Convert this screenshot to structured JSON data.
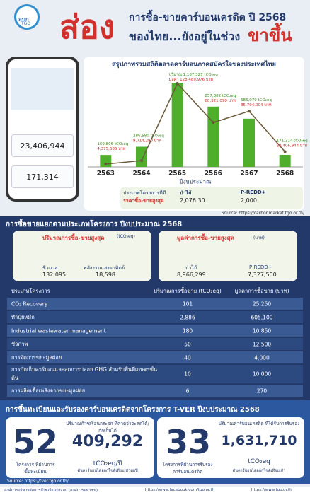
{
  "header": {
    "logo": "อบก",
    "logo_sub": "TGO",
    "big": "ส่อง",
    "line1": "การซื้อ-ขายคาร์บอนเครดิต ปี 2568",
    "line2": "ของไทย...ยังอยู่ในช่วง",
    "highlight": "ขาขึ้น"
  },
  "phone": {
    "value_amount": "23,406,944",
    "volume_amount": "171,314"
  },
  "chart_data": {
    "type": "bar",
    "title": "สรุปภาพรวมสถิติตลาดคาร์บอนภาคสมัครใจของประเทศไทย",
    "x_label": "ปีงบประมาณ",
    "categories": [
      "2563",
      "2564",
      "2565",
      "2566",
      "2567",
      "2568"
    ],
    "series": [
      {
        "name": "ปริมาณ",
        "color": "#4fae2c",
        "unit": "tCO₂eq",
        "values": [
          169806,
          286580,
          1187327,
          857382,
          686079,
          171314
        ],
        "value_labels": [
          "169,806",
          "286,580",
          "1,187,327",
          "857,382",
          "686,079",
          "171,314"
        ]
      },
      {
        "name": "มูลค่า",
        "type": "line",
        "axis": "y2",
        "color": "#6b5a3a",
        "label_color": "#d0312d",
        "unit": "บาท",
        "values": [
          4375686,
          9714290,
          128489976,
          68321090,
          85794004,
          23406944
        ],
        "value_labels": [
          "4,375,686",
          "9,714,290",
          "128,489,976",
          "68,321,090",
          "85,794,004",
          "23,406,944"
        ]
      }
    ]
  },
  "price_box": {
    "title1": "ประเภทโครงการที่มี",
    "title2": "ราคาซื้อ-ขายสูงสุด",
    "items": [
      {
        "name": "ป่าไม้",
        "value": "2,076.30"
      },
      {
        "name": "P-REDD+",
        "value": "2,000"
      }
    ]
  },
  "source1": "Source: https://carbonmarket.tgo.or.th/",
  "section2": {
    "title": "การซื้อขายแยกตามประเภทโครงการ ปีงบประมาณ 2568",
    "left": {
      "title": "ปริมาณการซื้อ-ขายสูงสุด",
      "unit": "(tCO₂eq)",
      "items": [
        {
          "name": "ชีวมวล",
          "value": "132,095"
        },
        {
          "name": "พลังงานแสงอาทิตย์",
          "value": "18,598"
        }
      ]
    },
    "right": {
      "title": "มูลค่าการซื้อ-ขายสูงสุด",
      "unit": "(บาท)",
      "items": [
        {
          "name": "ป่าไม้",
          "value": "8,966,299"
        },
        {
          "name": "P-REDD+",
          "value": "7,327,500"
        }
      ]
    }
  },
  "table": {
    "headers": [
      "ประเภทโครงการ",
      "ปริมาณการซื้อขาย (tCO₂eq)",
      "มูลค่าการซื้อขาย (บาท)"
    ],
    "rows": [
      [
        "CO₂ Recovery",
        "101",
        "25,250"
      ],
      [
        "ทำปุ๋ยหมัก",
        "2,886",
        "605,100"
      ],
      [
        "Industrial wastewater management",
        "180",
        "10,850"
      ],
      [
        "ชีวภาพ",
        "50",
        "12,500"
      ],
      [
        "การจัดการขยะมูลฝอย",
        "40",
        "4,000"
      ],
      [
        "การกักเก็บคาร์บอนและลดการปล่อย GHG สำหรับพื้นที่เกษตรขั้นต้น",
        "10",
        "10,000"
      ],
      [
        "การผลิตเชื้อเพลิงจากขยะมูลฝอย",
        "6",
        "270"
      ]
    ]
  },
  "section3": {
    "title": "การขึ้นทะเบียนและรับรองคาร์บอนเครดิตจากโครงการ T-VER ปีงบประมาณ 2568",
    "left": {
      "count": "52",
      "count_label": "โครงการ ที่ผ่านการขึ้นทะเบียน",
      "desc": "ปริมาณก๊าซเรือนกระจก ที่คาดว่าจะลดได้/กักเก็บได้",
      "amount": "409,292",
      "unit": "tCO₂eq/ปี",
      "unit_desc": "ตันคาร์บอนไดออกไซด์เทียบเท่าต่อปี"
    },
    "right": {
      "count": "33",
      "count_label": "โครงการที่ผ่านการรับรอง คาร์บอนเครดิต",
      "desc": "ปริมาณคาร์บอนเครดิต ที่ได้รับการรับรอง",
      "amount": "1,631,710",
      "unit": "tCO₂eq",
      "unit_desc": "ตันคาร์บอนไดออกไซด์เทียบเท่า"
    }
  },
  "source2": "Source: https://tver.tgo.or.th/",
  "footer": {
    "org": "องค์การบริหารจัดการก๊าซเรือนกระจก (องค์การมหาชน)",
    "facebook": "https://www.facebook.com/tgo.or.th",
    "web": "https://www.tgo.or.th"
  }
}
